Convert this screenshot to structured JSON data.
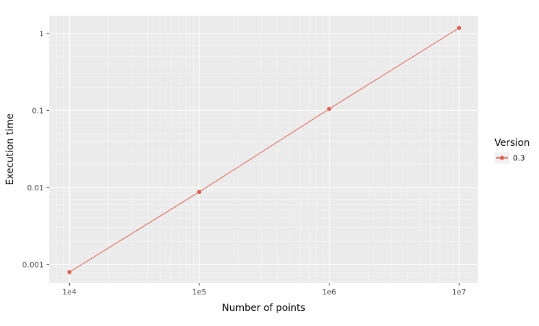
{
  "chart_data": {
    "type": "line",
    "xlabel": "Number of points",
    "ylabel": "Execution time",
    "x_scale": "log10",
    "y_scale": "log10",
    "xlim": [
      7000,
      14000000
    ],
    "ylim": [
      0.00058,
      1.7
    ],
    "x_ticks": [
      {
        "value": 10000,
        "label": "1e4"
      },
      {
        "value": 100000,
        "label": "1e5"
      },
      {
        "value": 1000000,
        "label": "1e6"
      },
      {
        "value": 10000000,
        "label": "1e7"
      }
    ],
    "y_ticks": [
      {
        "value": 0.001,
        "label": "0.001"
      },
      {
        "value": 0.01,
        "label": "0.01"
      },
      {
        "value": 0.1,
        "label": "0.1"
      },
      {
        "value": 1,
        "label": "1"
      }
    ],
    "grid": true,
    "legend": {
      "title": "Version",
      "position": "right"
    },
    "series": [
      {
        "name": "0.3",
        "color": "#e05b4c",
        "x": [
          10000,
          100000,
          1000000,
          10000000
        ],
        "y": [
          0.0008,
          0.0088,
          0.105,
          1.18
        ]
      }
    ]
  }
}
